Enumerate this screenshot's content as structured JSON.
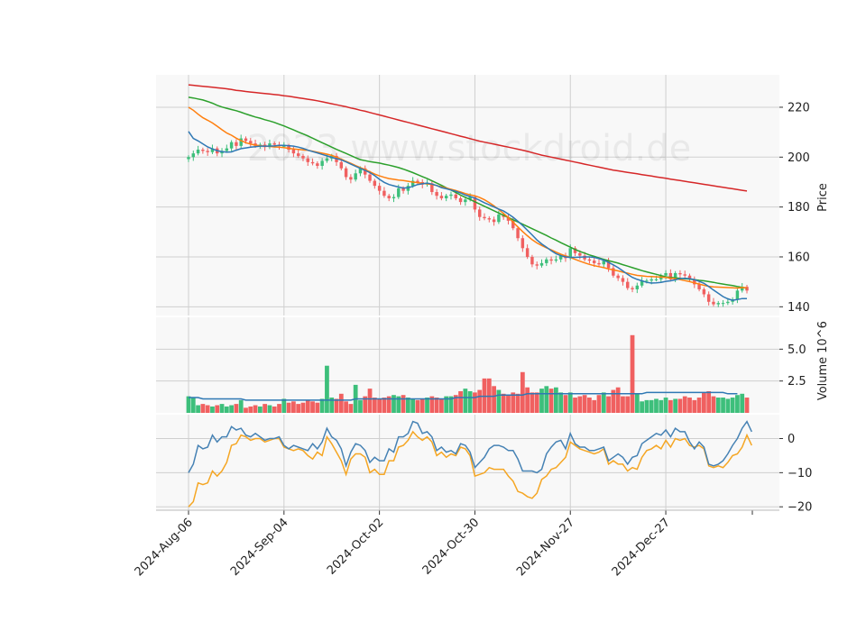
{
  "chart_data": {
    "type": "candlestick",
    "watermark": "2023 www.stockdroid.de",
    "colors": {
      "up": "#3dbf7b",
      "down": "#f06060",
      "ma_short": "#2f78b4",
      "ma_mid": "#ff7f0e",
      "ma_long": "#2ca02c",
      "ma_longest": "#d62728",
      "volume_ma": "#2f78b4",
      "macd": "#4682b4",
      "signal": "#f5a623",
      "panel_bg": "#f8f8f8",
      "grid": "#cfcfcf"
    },
    "x_ticks": [
      {
        "index": 0,
        "label": "2024-Aug-06"
      },
      {
        "index": 20,
        "label": "2024-Sep-04"
      },
      {
        "index": 40,
        "label": "2024-Oct-02"
      },
      {
        "index": 60,
        "label": "2024-Oct-30"
      },
      {
        "index": 80,
        "label": "2024-Nov-27"
      },
      {
        "index": 100,
        "label": "2024-Dec-27"
      }
    ],
    "price_panel": {
      "ylabel": "Price",
      "ylim": [
        136.5,
        233
      ],
      "yticks": [
        140,
        160,
        180,
        200,
        220
      ],
      "close": [
        200.0,
        201.5,
        203.0,
        202.5,
        202.0,
        203.5,
        201.5,
        202.5,
        203.5,
        206.0,
        204.5,
        207.5,
        206.5,
        205.5,
        204.5,
        205.0,
        204.0,
        205.5,
        205.0,
        204.5,
        204.5,
        203.0,
        201.5,
        200.5,
        199.5,
        198.0,
        197.5,
        196.5,
        198.5,
        199.5,
        200.5,
        198.0,
        195.5,
        192.0,
        191.0,
        193.5,
        195.5,
        193.0,
        190.5,
        188.5,
        186.5,
        184.5,
        183.5,
        184.0,
        187.5,
        186.5,
        188.5,
        190.5,
        190.0,
        189.0,
        189.5,
        186.0,
        184.5,
        183.5,
        184.5,
        185.0,
        183.5,
        182.0,
        183.0,
        184.0,
        179.0,
        176.0,
        175.5,
        175.0,
        174.0,
        177.0,
        176.0,
        174.5,
        171.5,
        167.5,
        163.5,
        160.0,
        157.0,
        156.5,
        157.5,
        159.0,
        158.5,
        159.0,
        160.5,
        159.5,
        163.5,
        161.5,
        160.5,
        159.0,
        158.5,
        157.5,
        157.0,
        158.5,
        155.5,
        152.5,
        151.5,
        150.0,
        147.5,
        147.0,
        148.5,
        150.5,
        150.5,
        151.0,
        151.0,
        152.5,
        153.5,
        151.0,
        153.5,
        153.0,
        152.5,
        151.0,
        149.0,
        147.0,
        145.0,
        142.0,
        141.0,
        141.5,
        141.5,
        142.0,
        143.0,
        146.5,
        148.0,
        146.5
      ],
      "ma_short": [
        210.3,
        207.5,
        206.5,
        205.3,
        204.1,
        203.3,
        202.6,
        202.2,
        202.0,
        202.1,
        202.8,
        203.4,
        203.7,
        204.0,
        204.2,
        204.4,
        204.4,
        204.4,
        204.5,
        204.7,
        204.7,
        204.6,
        204.4,
        204.0,
        203.5,
        202.8,
        202.2,
        201.7,
        201.1,
        200.5,
        199.9,
        199.4,
        198.9,
        198.1,
        197.2,
        196.3,
        195.5,
        194.7,
        193.8,
        192.6,
        191.1,
        189.9,
        189.0,
        188.5,
        188.0,
        187.6,
        187.7,
        188.3,
        189.0,
        189.3,
        189.6,
        189.2,
        188.6,
        187.8,
        187.3,
        186.8,
        186.3,
        185.6,
        184.8,
        184.2,
        183.6,
        182.7,
        181.7,
        180.9,
        180.0,
        179.2,
        178.4,
        177.2,
        175.9,
        174.3,
        172.6,
        170.7,
        168.8,
        166.8,
        165.2,
        163.9,
        162.5,
        161.3,
        160.5,
        160.0,
        159.8,
        159.8,
        159.9,
        160.0,
        160.0,
        159.8,
        159.3,
        158.7,
        157.8,
        156.8,
        155.7,
        154.4,
        153.0,
        151.8,
        151.0,
        150.4,
        149.8,
        149.5,
        149.6,
        149.8,
        150.2,
        150.4,
        150.8,
        151.3,
        151.4,
        151.3,
        150.9,
        150.2,
        149.4,
        148.1,
        146.7,
        145.4,
        144.1,
        143.2,
        142.6,
        142.9,
        143.3,
        143.3
      ],
      "ma_mid": [
        220.0,
        218.8,
        217.2,
        215.8,
        214.8,
        213.7,
        212.4,
        211.0,
        209.7,
        208.8,
        207.6,
        206.6,
        205.8,
        205.2,
        204.8,
        204.6,
        204.4,
        204.3,
        204.1,
        204.0,
        203.8,
        203.5,
        203.3,
        203.1,
        202.9,
        202.7,
        202.4,
        202.0,
        201.6,
        201.2,
        200.7,
        200.0,
        199.2,
        198.3,
        197.5,
        196.6,
        195.8,
        195.0,
        194.1,
        193.2,
        192.5,
        191.9,
        191.4,
        191.1,
        190.8,
        190.6,
        190.3,
        190.0,
        189.8,
        189.5,
        189.3,
        189.0,
        188.6,
        188.1,
        187.6,
        187.1,
        186.6,
        186.0,
        185.4,
        184.9,
        184.5,
        183.8,
        182.9,
        181.8,
        180.5,
        179.0,
        177.4,
        175.8,
        173.9,
        172.0,
        170.2,
        168.5,
        166.9,
        165.6,
        164.6,
        163.6,
        162.8,
        161.9,
        161.1,
        160.4,
        159.8,
        159.0,
        158.3,
        157.6,
        157.0,
        156.5,
        156.1,
        155.7,
        155.2,
        154.8,
        154.4,
        153.9,
        153.5,
        153.0,
        152.6,
        152.4,
        152.2,
        152.1,
        152.0,
        151.9,
        151.8,
        151.5,
        151.3,
        150.9,
        150.5,
        150.1,
        149.6,
        149.1,
        148.6,
        148.2,
        148.0,
        147.9,
        147.8,
        147.7,
        147.6,
        147.5,
        147.7,
        147.6
      ],
      "ma_long": [
        224.0,
        223.7,
        223.3,
        222.9,
        222.3,
        221.6,
        220.8,
        220.1,
        219.6,
        219.1,
        218.6,
        218.0,
        217.3,
        216.7,
        216.1,
        215.6,
        215.0,
        214.5,
        213.9,
        213.2,
        212.5,
        211.7,
        210.9,
        210.1,
        209.3,
        208.5,
        207.6,
        206.7,
        205.8,
        204.9,
        204.0,
        203.1,
        202.3,
        201.5,
        200.6,
        199.8,
        199.0,
        198.6,
        198.2,
        197.9,
        197.6,
        197.2,
        196.8,
        196.3,
        195.8,
        195.2,
        194.5,
        193.8,
        193.0,
        192.2,
        191.4,
        190.5,
        189.6,
        188.7,
        187.7,
        186.8,
        185.8,
        184.8,
        183.9,
        183.0,
        182.1,
        181.2,
        180.3,
        179.4,
        178.5,
        177.6,
        176.7,
        175.8,
        174.9,
        174.0,
        173.1,
        172.2,
        171.3,
        170.4,
        169.5,
        168.6,
        167.6,
        166.7,
        165.7,
        164.8,
        163.9,
        163.0,
        162.2,
        161.5,
        160.8,
        160.2,
        159.6,
        159.0,
        158.5,
        158.0,
        157.5,
        156.9,
        156.3,
        155.7,
        155.1,
        154.5,
        154.0,
        153.5,
        153.0,
        152.5,
        152.0,
        151.8,
        151.6,
        151.4,
        151.2,
        151.1,
        150.9,
        150.6,
        150.4,
        150.1,
        149.8,
        149.4,
        149.1,
        148.8,
        148.5,
        148.1,
        147.8,
        147.5
      ],
      "ma_longest": [
        229.0,
        228.8,
        228.6,
        228.4,
        228.2,
        228.0,
        227.8,
        227.6,
        227.4,
        227.1,
        226.8,
        226.6,
        226.3,
        226.1,
        225.9,
        225.7,
        225.5,
        225.3,
        225.1,
        224.9,
        224.6,
        224.4,
        224.1,
        223.8,
        223.5,
        223.2,
        222.9,
        222.6,
        222.2,
        221.8,
        221.4,
        221.0,
        220.6,
        220.2,
        219.7,
        219.3,
        218.8,
        218.4,
        217.9,
        217.4,
        216.9,
        216.4,
        215.9,
        215.4,
        214.9,
        214.4,
        213.9,
        213.4,
        212.9,
        212.4,
        211.9,
        211.4,
        210.9,
        210.4,
        209.9,
        209.4,
        208.9,
        208.4,
        207.9,
        207.4,
        206.9,
        206.4,
        206.0,
        205.6,
        205.2,
        204.8,
        204.4,
        204.0,
        203.6,
        203.2,
        202.8,
        202.3,
        201.8,
        201.3,
        200.8,
        200.4,
        200.0,
        199.6,
        199.2,
        198.8,
        198.4,
        198.0,
        197.6,
        197.2,
        196.8,
        196.4,
        196.0,
        195.6,
        195.2,
        194.8,
        194.5,
        194.2,
        193.9,
        193.6,
        193.3,
        193.0,
        192.7,
        192.4,
        192.1,
        191.8,
        191.5,
        191.2,
        190.9,
        190.6,
        190.3,
        190.0,
        189.7,
        189.4,
        189.1,
        188.8,
        188.5,
        188.2,
        187.9,
        187.6,
        187.3,
        187.0,
        186.7,
        186.4
      ]
    },
    "volume_panel": {
      "ylabel": "Volume",
      "yscale_label": "10^6",
      "ylim": [
        0,
        7.5
      ],
      "yticks": [
        2.5,
        5.0
      ],
      "volume": [
        1.3,
        1.2,
        0.6,
        0.7,
        0.6,
        0.5,
        0.6,
        0.7,
        0.5,
        0.6,
        0.7,
        1.0,
        0.4,
        0.5,
        0.6,
        0.5,
        0.7,
        0.6,
        0.5,
        0.7,
        1.1,
        0.8,
        0.9,
        0.7,
        0.8,
        1.0,
        0.9,
        0.8,
        1.1,
        3.7,
        1.2,
        1.1,
        1.5,
        0.9,
        0.7,
        2.2,
        1.0,
        1.3,
        1.9,
        1.2,
        1.1,
        1.2,
        1.3,
        1.4,
        1.3,
        1.4,
        1.2,
        1.1,
        1.0,
        1.1,
        1.2,
        1.3,
        1.2,
        1.1,
        1.3,
        1.3,
        1.4,
        1.7,
        1.9,
        1.7,
        1.6,
        1.8,
        2.7,
        2.7,
        2.1,
        1.8,
        1.5,
        1.4,
        1.6,
        1.5,
        3.2,
        2.0,
        1.6,
        1.6,
        1.9,
        2.1,
        1.9,
        2.0,
        1.6,
        1.4,
        1.6,
        1.2,
        1.3,
        1.4,
        1.2,
        1.0,
        1.4,
        1.6,
        1.3,
        1.8,
        2.0,
        1.3,
        1.3,
        6.1,
        1.5,
        0.9,
        1.0,
        1.0,
        1.1,
        1.0,
        1.2,
        1.0,
        1.1,
        1.1,
        1.3,
        1.2,
        1.0,
        1.2,
        1.6,
        1.7,
        1.3,
        1.2,
        1.2,
        1.1,
        1.2,
        1.4,
        1.5,
        1.2
      ],
      "vol_ma": [
        1.2,
        1.2,
        1.2,
        1.1,
        1.1,
        1.1,
        1.1,
        1.1,
        1.1,
        1.1,
        1.1,
        1.1,
        1.0,
        1.0,
        1.0,
        1.0,
        1.0,
        1.0,
        1.0,
        1.0,
        1.0,
        1.0,
        1.0,
        1.0,
        1.0,
        1.0,
        1.0,
        1.0,
        1.0,
        1.0,
        1.0,
        1.0,
        1.0,
        1.0,
        1.0,
        1.1,
        1.1,
        1.1,
        1.1,
        1.1,
        1.1,
        1.1,
        1.1,
        1.1,
        1.1,
        1.1,
        1.1,
        1.1,
        1.1,
        1.1,
        1.1,
        1.1,
        1.1,
        1.1,
        1.1,
        1.1,
        1.2,
        1.2,
        1.2,
        1.2,
        1.2,
        1.3,
        1.3,
        1.3,
        1.3,
        1.4,
        1.4,
        1.4,
        1.4,
        1.4,
        1.4,
        1.5,
        1.5,
        1.5,
        1.5,
        1.5,
        1.5,
        1.5,
        1.5,
        1.5,
        1.5,
        1.5,
        1.5,
        1.5,
        1.5,
        1.5,
        1.5,
        1.5,
        1.5,
        1.5,
        1.5,
        1.5,
        1.5,
        1.5,
        1.5,
        1.5,
        1.6,
        1.6,
        1.6,
        1.6,
        1.6,
        1.6,
        1.6,
        1.6,
        1.6,
        1.6,
        1.6,
        1.6,
        1.6,
        1.6,
        1.6,
        1.6,
        1.6,
        1.5,
        1.5,
        1.5
      ]
    },
    "macd_panel": {
      "ylim": [
        -21,
        7
      ],
      "yticks": [
        -20,
        -10,
        0
      ],
      "macd": [
        -10.0,
        -7.5,
        -2.0,
        -3.0,
        -2.5,
        1.0,
        -1.0,
        0.5,
        0.5,
        3.5,
        2.5,
        3.0,
        1.0,
        0.5,
        1.5,
        0.5,
        -0.5,
        0.0,
        0.0,
        0.5,
        -2.0,
        -3.0,
        -2.0,
        -2.5,
        -3.0,
        -3.5,
        -1.5,
        -3.0,
        -1.0,
        3.0,
        0.5,
        -0.5,
        -3.0,
        -8.0,
        -4.0,
        -1.5,
        -2.0,
        -3.5,
        -7.0,
        -5.5,
        -6.5,
        -6.5,
        -3.0,
        -4.0,
        0.5,
        0.5,
        1.5,
        5.0,
        4.5,
        1.5,
        2.0,
        0.5,
        -3.5,
        -2.5,
        -4.0,
        -3.5,
        -4.5,
        -1.5,
        -2.0,
        -4.0,
        -8.5,
        -7.0,
        -5.5,
        -3.0,
        -2.0,
        -2.0,
        -2.5,
        -3.5,
        -3.5,
        -6.0,
        -9.5,
        -9.5,
        -9.5,
        -10.0,
        -9.0,
        -4.5,
        -2.5,
        -1.0,
        -0.5,
        -3.0,
        1.5,
        -1.5,
        -2.5,
        -2.5,
        -3.5,
        -3.5,
        -3.0,
        -2.5,
        -6.5,
        -5.5,
        -4.5,
        -5.5,
        -7.5,
        -5.5,
        -5.0,
        -1.5,
        -0.5,
        0.5,
        1.5,
        1.0,
        2.5,
        0.5,
        3.0,
        2.0,
        2.0,
        -1.0,
        -3.0,
        -1.0,
        -2.5,
        -7.5,
        -8.0,
        -7.5,
        -6.5,
        -4.5,
        -2.0,
        0.0,
        3.0,
        5.0,
        2.0
      ],
      "signal": [
        -20.0,
        -18.5,
        -13.0,
        -13.5,
        -13.0,
        -9.5,
        -11.0,
        -9.5,
        -7.0,
        -2.0,
        -1.5,
        1.0,
        0.5,
        -0.5,
        0.0,
        0.0,
        -1.0,
        -0.5,
        0.0,
        0.0,
        -2.5,
        -3.0,
        -3.5,
        -3.0,
        -3.5,
        -5.0,
        -6.0,
        -4.0,
        -5.0,
        0.5,
        -1.5,
        -4.0,
        -6.5,
        -10.5,
        -6.0,
        -4.5,
        -4.5,
        -5.5,
        -10.0,
        -9.0,
        -10.5,
        -10.5,
        -6.5,
        -6.5,
        -2.5,
        -2.0,
        -0.5,
        2.0,
        0.5,
        -0.5,
        0.5,
        -1.0,
        -5.0,
        -4.0,
        -5.5,
        -4.5,
        -5.0,
        -2.5,
        -3.0,
        -5.0,
        -11.0,
        -10.5,
        -10.0,
        -8.5,
        -9.0,
        -9.0,
        -9.0,
        -11.0,
        -12.5,
        -15.5,
        -16.0,
        -17.0,
        -17.5,
        -16.0,
        -12.0,
        -11.0,
        -9.0,
        -8.5,
        -7.0,
        -5.5,
        -1.0,
        -2.0,
        -3.0,
        -3.5,
        -4.0,
        -4.5,
        -4.0,
        -3.0,
        -7.5,
        -6.5,
        -7.5,
        -7.5,
        -9.5,
        -8.5,
        -9.0,
        -5.5,
        -3.5,
        -3.0,
        -2.0,
        -3.0,
        -0.5,
        -2.5,
        0.0,
        -0.5,
        0.0,
        -2.0,
        -2.5,
        -2.0,
        -3.0,
        -8.0,
        -8.5,
        -8.0,
        -8.5,
        -7.0,
        -5.0,
        -4.5,
        -2.5,
        1.0,
        -2.0
      ]
    }
  }
}
